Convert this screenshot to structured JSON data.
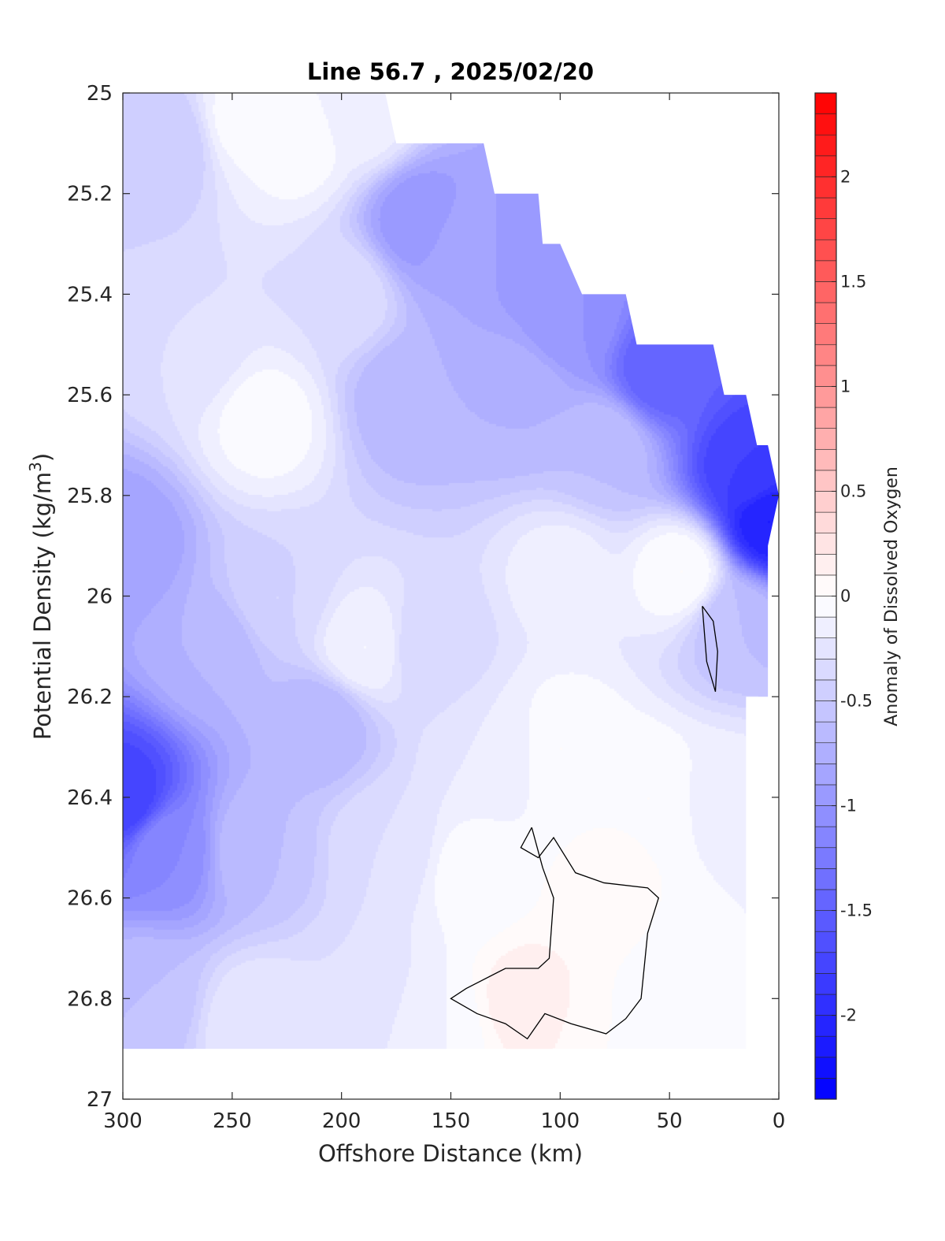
{
  "chart_data": {
    "type": "heatmap",
    "title": "Line 56.7 , 2025/02/20",
    "xlabel": "Offshore Distance (km)",
    "ylabel_text": "Potential Density (kg/m",
    "ylabel_sup": "3",
    "ylabel_close": ")",
    "colorbar_label": "Anomaly of Dissolved Oxygen",
    "xlim": [
      300,
      0
    ],
    "ylim": [
      25,
      27
    ],
    "y_reversed": true,
    "x_reversed": true,
    "x_ticks": [
      300,
      250,
      200,
      150,
      100,
      50,
      0
    ],
    "x_tick_labels": [
      "300",
      "250",
      "200",
      "150",
      "100",
      "50",
      "0"
    ],
    "y_ticks": [
      25,
      25.2,
      25.4,
      25.6,
      25.8,
      26,
      26.2,
      26.4,
      26.6,
      26.8,
      27
    ],
    "y_tick_labels": [
      "25",
      "25.2",
      "25.4",
      "25.6",
      "25.8",
      "26",
      "26.2",
      "26.4",
      "26.6",
      "26.8",
      "27"
    ],
    "colorbar_range": [
      -2.4,
      2.4
    ],
    "colorbar_levels": 48,
    "colorbar_ticks": [
      2,
      1.5,
      1,
      0.5,
      0,
      -0.5,
      -1,
      -1.5,
      -2
    ],
    "colorbar_tick_labels": [
      "2",
      "1.5",
      "1",
      "0.5",
      "0",
      "-0.5",
      "-1",
      "-1.5",
      "-2"
    ],
    "colormap": {
      "negative": "#0000ff",
      "zero": "#ffffff",
      "positive": "#ff0000"
    },
    "data_boundary_top": [
      [
        300,
        25.0
      ],
      [
        180,
        25.0
      ],
      [
        175,
        25.1
      ],
      [
        135,
        25.1
      ],
      [
        130,
        25.2
      ],
      [
        110,
        25.2
      ],
      [
        108,
        25.3
      ],
      [
        100,
        25.3
      ],
      [
        90,
        25.4
      ],
      [
        70,
        25.4
      ],
      [
        65,
        25.5
      ],
      [
        30,
        25.5
      ],
      [
        25,
        25.6
      ],
      [
        15,
        25.6
      ],
      [
        10,
        25.7
      ],
      [
        5,
        25.7
      ],
      [
        0,
        25.8
      ],
      [
        5,
        25.9
      ],
      [
        5,
        26.2
      ],
      [
        15,
        26.2
      ]
    ],
    "data_boundary_bottom_y": 26.9,
    "anomaly_points": [
      {
        "x": 300,
        "y": 25.05,
        "v": -0.5
      },
      {
        "x": 280,
        "y": 25.1,
        "v": -0.5
      },
      {
        "x": 245,
        "y": 25.05,
        "v": -0.05
      },
      {
        "x": 220,
        "y": 25.1,
        "v": -0.05
      },
      {
        "x": 190,
        "y": 25.05,
        "v": -0.15
      },
      {
        "x": 165,
        "y": 25.25,
        "v": -1.0
      },
      {
        "x": 145,
        "y": 25.3,
        "v": -0.8
      },
      {
        "x": 115,
        "y": 25.3,
        "v": -1.0
      },
      {
        "x": 95,
        "y": 25.45,
        "v": -1.0
      },
      {
        "x": 55,
        "y": 25.55,
        "v": -1.5
      },
      {
        "x": 15,
        "y": 25.75,
        "v": -1.8
      },
      {
        "x": 5,
        "y": 25.85,
        "v": -2.1
      },
      {
        "x": 270,
        "y": 25.5,
        "v": -0.3
      },
      {
        "x": 235,
        "y": 25.65,
        "v": -0.05
      },
      {
        "x": 200,
        "y": 25.4,
        "v": -0.3
      },
      {
        "x": 170,
        "y": 25.6,
        "v": -0.7
      },
      {
        "x": 120,
        "y": 25.6,
        "v": -0.7
      },
      {
        "x": 80,
        "y": 25.7,
        "v": -0.6
      },
      {
        "x": 45,
        "y": 25.95,
        "v": 0.0
      },
      {
        "x": 100,
        "y": 25.95,
        "v": -0.15
      },
      {
        "x": 20,
        "y": 26.05,
        "v": -0.6
      },
      {
        "x": 300,
        "y": 25.9,
        "v": -0.9
      },
      {
        "x": 300,
        "y": 26.4,
        "v": -1.8
      },
      {
        "x": 280,
        "y": 26.5,
        "v": -1.1
      },
      {
        "x": 260,
        "y": 26.1,
        "v": -0.7
      },
      {
        "x": 230,
        "y": 26.0,
        "v": -0.4
      },
      {
        "x": 210,
        "y": 26.25,
        "v": -0.7
      },
      {
        "x": 190,
        "y": 26.1,
        "v": -0.1
      },
      {
        "x": 160,
        "y": 26.1,
        "v": -0.4
      },
      {
        "x": 130,
        "y": 26.3,
        "v": -0.2
      },
      {
        "x": 100,
        "y": 26.3,
        "v": 0.0
      },
      {
        "x": 60,
        "y": 26.4,
        "v": 0.0
      },
      {
        "x": 25,
        "y": 26.4,
        "v": -0.15
      },
      {
        "x": 240,
        "y": 26.5,
        "v": -0.6
      },
      {
        "x": 180,
        "y": 26.5,
        "v": -0.3
      },
      {
        "x": 140,
        "y": 26.55,
        "v": -0.05
      },
      {
        "x": 80,
        "y": 26.6,
        "v": 0.05
      },
      {
        "x": 40,
        "y": 26.75,
        "v": -0.1
      },
      {
        "x": 290,
        "y": 26.8,
        "v": -0.6
      },
      {
        "x": 240,
        "y": 26.85,
        "v": -0.2
      },
      {
        "x": 190,
        "y": 26.8,
        "v": -0.3
      },
      {
        "x": 160,
        "y": 26.85,
        "v": -0.1
      },
      {
        "x": 115,
        "y": 26.8,
        "v": 0.15
      },
      {
        "x": 75,
        "y": 26.85,
        "v": 0.0
      },
      {
        "x": 35,
        "y": 26.9,
        "v": -0.1
      }
    ],
    "zero_contours": [
      [
        [
          113,
          26.46
        ],
        [
          118,
          26.5
        ],
        [
          110,
          26.52
        ],
        [
          103,
          26.48
        ],
        [
          93,
          26.55
        ],
        [
          80,
          26.57
        ],
        [
          60,
          26.58
        ],
        [
          55,
          26.6
        ],
        [
          60,
          26.67
        ],
        [
          63,
          26.8
        ],
        [
          70,
          26.84
        ],
        [
          79,
          26.87
        ],
        [
          95,
          26.85
        ],
        [
          107,
          26.83
        ],
        [
          115,
          26.88
        ],
        [
          125,
          26.85
        ],
        [
          138,
          26.83
        ],
        [
          150,
          26.8
        ],
        [
          143,
          26.78
        ],
        [
          125,
          26.74
        ],
        [
          110,
          26.74
        ],
        [
          105,
          26.72
        ],
        [
          103,
          26.6
        ],
        [
          108,
          26.54
        ],
        [
          113,
          26.46
        ]
      ],
      [
        [
          35,
          26.02
        ],
        [
          30,
          26.05
        ],
        [
          28,
          26.11
        ],
        [
          29,
          26.19
        ],
        [
          33,
          26.13
        ],
        [
          35,
          26.02
        ]
      ]
    ]
  }
}
